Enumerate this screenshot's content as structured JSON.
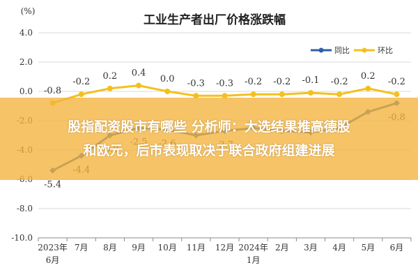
{
  "chart_data": {
    "type": "line",
    "title": "工业生产者出厂价格涨跌幅",
    "unit_label": "(%)",
    "ylim": [
      -10.0,
      4.0
    ],
    "yticks": [
      "4.0",
      "2.0",
      "0.0",
      "-2.0",
      "-4.0",
      "-6.0",
      "-8.0",
      "-10.0"
    ],
    "ytick_values": [
      4,
      2,
      0,
      -2,
      -4,
      -6,
      -8,
      -10
    ],
    "categories": [
      {
        "line1": "2023年",
        "line2": "6月"
      },
      {
        "line1": "7月",
        "line2": ""
      },
      {
        "line1": "8月",
        "line2": ""
      },
      {
        "line1": "9月",
        "line2": ""
      },
      {
        "line1": "10月",
        "line2": ""
      },
      {
        "line1": "11月",
        "line2": ""
      },
      {
        "line1": "12月",
        "line2": ""
      },
      {
        "line1": "2024年",
        "line2": "1月"
      },
      {
        "line1": "2月",
        "line2": ""
      },
      {
        "line1": "3月",
        "line2": ""
      },
      {
        "line1": "4月",
        "line2": ""
      },
      {
        "line1": "5月",
        "line2": ""
      },
      {
        "line1": "6月",
        "line2": ""
      }
    ],
    "grid": true,
    "legend_position": "top-right",
    "series": [
      {
        "name": "同比",
        "color": "#2e5fa8",
        "values": [
          -5.4,
          -4.4,
          -3.0,
          -2.5,
          -2.6,
          -3.0,
          -2.7,
          -2.5,
          -2.7,
          -2.8,
          -2.5,
          -1.4,
          -0.8
        ],
        "labels": [
          "-5.4",
          "-4.4",
          "-3.0",
          "-2.5",
          "-2.6",
          "",
          "-2.7",
          "",
          "",
          "",
          "",
          "",
          "-0.8"
        ],
        "label_position": "below"
      },
      {
        "name": "环比",
        "color": "#f5c01c",
        "values": [
          -0.8,
          -0.2,
          0.2,
          0.4,
          0.0,
          -0.3,
          -0.3,
          -0.2,
          -0.2,
          -0.1,
          -0.2,
          0.2,
          -0.2
        ],
        "labels": [
          "-0.8",
          "-0.2",
          "0.2",
          "0.4",
          "0.0",
          "-0.3",
          "-0.3",
          "-0.2",
          "-0.2",
          "-0.1",
          "-0.2",
          "0.2",
          "-0.2"
        ],
        "label_position": "above"
      }
    ]
  },
  "overlay": {
    "line1": "股指配资股市有哪些 分析师：大选结果推高德股",
    "line2": "和欧元，后市表现取决于联合政府组建进展"
  }
}
